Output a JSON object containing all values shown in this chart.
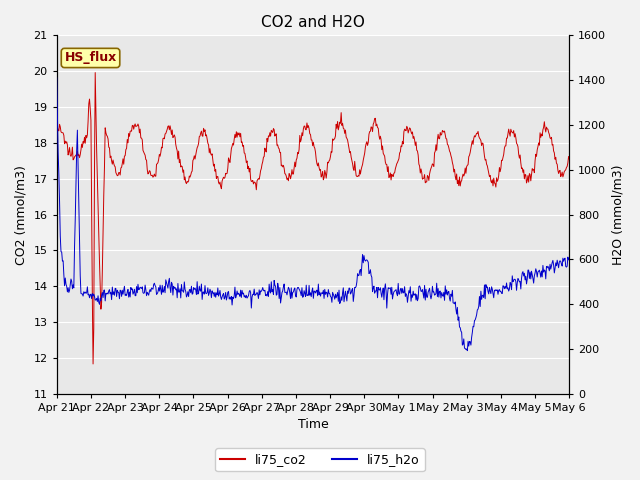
{
  "title": "CO2 and H2O",
  "xlabel": "Time",
  "ylabel_left": "CO2 (mmol/m3)",
  "ylabel_right": "H2O (mmol/m3)",
  "ylim_left": [
    11.0,
    21.0
  ],
  "ylim_right": [
    0,
    1600
  ],
  "yticks_left": [
    11.0,
    12.0,
    13.0,
    14.0,
    15.0,
    16.0,
    17.0,
    18.0,
    19.0,
    20.0,
    21.0
  ],
  "yticks_right": [
    0,
    200,
    400,
    600,
    800,
    1000,
    1200,
    1400,
    1600
  ],
  "plot_bg_color": "#e8e8e8",
  "fig_bg_color": "#f2f2f2",
  "grid_color": "#ffffff",
  "co2_color": "#cc0000",
  "h2o_color": "#0000cc",
  "legend_co2": "li75_co2",
  "legend_h2o": "li75_h2o",
  "hs_flux_label": "HS_flux",
  "hs_flux_bg": "#ffffaa",
  "hs_flux_border": "#886600",
  "hs_flux_text_color": "#880000",
  "title_fontsize": 11,
  "axis_label_fontsize": 9,
  "tick_fontsize": 8,
  "legend_fontsize": 9,
  "x_tick_labels": [
    "Apr 21",
    "Apr 22",
    "Apr 23",
    "Apr 24",
    "Apr 25",
    "Apr 26",
    "Apr 27",
    "Apr 28",
    "Apr 29",
    "Apr 30",
    "May 1",
    "May 2",
    "May 3",
    "May 4",
    "May 5",
    "May 6"
  ]
}
